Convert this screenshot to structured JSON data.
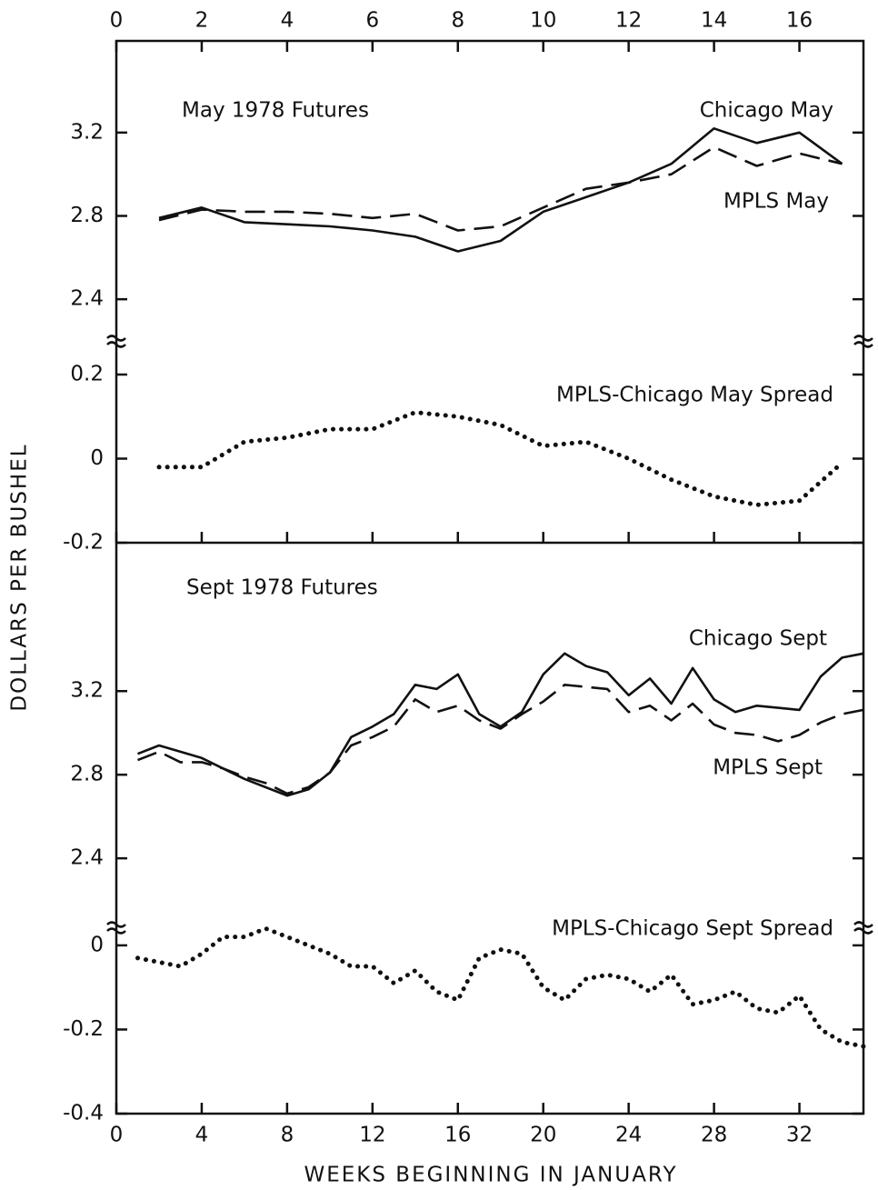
{
  "chart_data": [
    {
      "type": "line",
      "title": "May 1978 Futures",
      "ylabel": "DOLLARS PER BUSHEL",
      "x": [
        1,
        2,
        3,
        4,
        5,
        6,
        7,
        8,
        9,
        10,
        11,
        12,
        13,
        14,
        15,
        16,
        17
      ],
      "xlim": [
        0,
        17.5
      ],
      "xticks": [
        0,
        2,
        4,
        6,
        8,
        10,
        12,
        14,
        16
      ],
      "ylim": [
        2.2,
        3.64
      ],
      "yticks": [
        2.4,
        2.8,
        3.2
      ],
      "series": [
        {
          "name": "Chicago May",
          "color": "#111111",
          "style": "solid",
          "values": [
            2.79,
            2.84,
            2.77,
            2.76,
            2.75,
            2.73,
            2.7,
            2.63,
            2.68,
            2.82,
            2.89,
            2.96,
            3.05,
            3.22,
            3.15,
            3.2,
            3.05
          ]
        },
        {
          "name": "MPLS May",
          "color": "#111111",
          "style": "dashed",
          "values": [
            2.78,
            2.83,
            2.82,
            2.82,
            2.81,
            2.79,
            2.81,
            2.73,
            2.75,
            2.84,
            2.93,
            2.96,
            3.0,
            3.13,
            3.04,
            3.1,
            3.05
          ]
        }
      ]
    },
    {
      "type": "line",
      "x": [
        1,
        2,
        3,
        4,
        5,
        6,
        7,
        8,
        9,
        10,
        11,
        12,
        13,
        14,
        15,
        16,
        17
      ],
      "xlim": [
        0,
        17.5
      ],
      "ylim": [
        -0.2,
        0.28
      ],
      "yticks": [
        -0.2,
        0,
        0.2
      ],
      "series": [
        {
          "name": "MPLS-Chicago May Spread",
          "color": "#111111",
          "style": "dotted",
          "values": [
            -0.02,
            -0.02,
            0.04,
            0.05,
            0.07,
            0.07,
            0.11,
            0.1,
            0.08,
            0.03,
            0.04,
            0.0,
            -0.05,
            -0.09,
            -0.11,
            -0.1,
            -0.01
          ]
        }
      ]
    },
    {
      "type": "line",
      "title": "Sept 1978 Futures",
      "x": [
        1,
        2,
        3,
        4,
        5,
        6,
        7,
        8,
        9,
        10,
        11,
        12,
        13,
        14,
        15,
        16,
        17,
        18,
        19,
        20,
        21,
        22,
        23,
        24,
        25,
        26,
        27,
        28,
        29,
        30,
        31,
        32,
        33,
        34,
        35
      ],
      "xlim": [
        0,
        35
      ],
      "ylim": [
        2.07,
        3.91
      ],
      "yticks": [
        2.4,
        2.8,
        3.2
      ],
      "series": [
        {
          "name": "Chicago Sept",
          "color": "#111111",
          "style": "solid",
          "values": [
            2.9,
            2.94,
            2.91,
            2.88,
            2.83,
            2.78,
            2.74,
            2.7,
            2.73,
            2.81,
            2.98,
            3.03,
            3.09,
            3.23,
            3.21,
            3.28,
            3.09,
            3.03,
            3.1,
            3.28,
            3.38,
            3.32,
            3.29,
            3.18,
            3.26,
            3.14,
            3.31,
            3.16,
            3.1,
            3.13,
            3.12,
            3.11,
            3.27,
            3.36,
            3.38
          ]
        },
        {
          "name": "MPLS Sept",
          "color": "#111111",
          "style": "dashed",
          "values": [
            2.87,
            2.91,
            2.86,
            2.86,
            2.83,
            2.79,
            2.76,
            2.71,
            2.74,
            2.81,
            2.94,
            2.98,
            3.03,
            3.16,
            3.1,
            3.13,
            3.06,
            3.02,
            3.09,
            3.15,
            3.23,
            3.22,
            3.21,
            3.1,
            3.13,
            3.06,
            3.14,
            3.04,
            3.0,
            2.99,
            2.96,
            2.99,
            3.05,
            3.09,
            3.11
          ]
        }
      ]
    },
    {
      "type": "line",
      "xlabel": "WEEKS BEGINNING IN JANUARY",
      "x": [
        1,
        2,
        3,
        4,
        5,
        6,
        7,
        8,
        9,
        10,
        11,
        12,
        13,
        14,
        15,
        16,
        17,
        18,
        19,
        20,
        21,
        22,
        23,
        24,
        25,
        26,
        27,
        28,
        29,
        30,
        31,
        32,
        33,
        34,
        35
      ],
      "xlim": [
        0,
        35
      ],
      "xticks": [
        0,
        4,
        8,
        12,
        16,
        20,
        24,
        28,
        32
      ],
      "ylim": [
        -0.4,
        0.043
      ],
      "yticks": [
        -0.4,
        -0.2,
        0
      ],
      "series": [
        {
          "name": "MPLS-Chicago Sept Spread",
          "color": "#111111",
          "style": "dotted",
          "values": [
            -0.03,
            -0.04,
            -0.05,
            -0.02,
            0.02,
            0.02,
            0.04,
            0.02,
            0.0,
            -0.02,
            -0.05,
            -0.05,
            -0.09,
            -0.06,
            -0.11,
            -0.13,
            -0.03,
            -0.01,
            -0.02,
            -0.1,
            -0.13,
            -0.08,
            -0.07,
            -0.08,
            -0.11,
            -0.07,
            -0.14,
            -0.13,
            -0.11,
            -0.15,
            -0.16,
            -0.12,
            -0.2,
            -0.23,
            -0.24
          ]
        }
      ]
    }
  ]
}
